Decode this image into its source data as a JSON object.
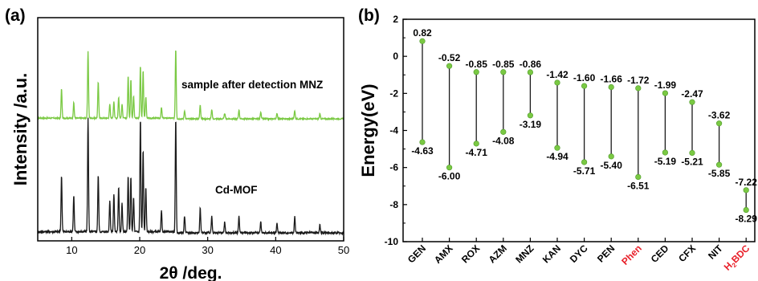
{
  "chart_data": [
    {
      "type": "line",
      "panel_label": "(a)",
      "xlabel": "2θ /deg.",
      "ylabel": "Intensity /a.u.",
      "xlim": [
        5,
        50
      ],
      "xticks": [
        10,
        20,
        30,
        40,
        50
      ],
      "y_tick_labels": "none",
      "grid": false,
      "series": [
        {
          "name": "sample after detection MNZ",
          "color": "#7ac943",
          "peaks": [
            {
              "x": 8.5,
              "y": 0.42
            },
            {
              "x": 10.3,
              "y": 0.22
            },
            {
              "x": 12.4,
              "y": 0.95
            },
            {
              "x": 13.9,
              "y": 0.52
            },
            {
              "x": 15.6,
              "y": 0.2
            },
            {
              "x": 16.2,
              "y": 0.24
            },
            {
              "x": 16.9,
              "y": 0.3
            },
            {
              "x": 17.4,
              "y": 0.2
            },
            {
              "x": 18.3,
              "y": 0.6
            },
            {
              "x": 18.7,
              "y": 0.55
            },
            {
              "x": 19.1,
              "y": 0.32
            },
            {
              "x": 20.1,
              "y": 0.75
            },
            {
              "x": 20.5,
              "y": 0.68
            },
            {
              "x": 20.9,
              "y": 0.3
            },
            {
              "x": 23.2,
              "y": 0.15
            },
            {
              "x": 25.3,
              "y": 1.0
            },
            {
              "x": 26.6,
              "y": 0.12
            },
            {
              "x": 28.9,
              "y": 0.2
            },
            {
              "x": 30.6,
              "y": 0.13
            },
            {
              "x": 32.5,
              "y": 0.08
            },
            {
              "x": 34.6,
              "y": 0.13
            },
            {
              "x": 37.8,
              "y": 0.1
            },
            {
              "x": 40.2,
              "y": 0.08
            },
            {
              "x": 42.8,
              "y": 0.12
            },
            {
              "x": 46.5,
              "y": 0.07
            }
          ]
        },
        {
          "name": "Cd-MOF",
          "color": "#1a1a1a",
          "peaks": [
            {
              "x": 8.5,
              "y": 0.5
            },
            {
              "x": 10.3,
              "y": 0.32
            },
            {
              "x": 12.4,
              "y": 1.0
            },
            {
              "x": 13.9,
              "y": 0.5
            },
            {
              "x": 15.6,
              "y": 0.28
            },
            {
              "x": 16.2,
              "y": 0.33
            },
            {
              "x": 16.9,
              "y": 0.4
            },
            {
              "x": 17.4,
              "y": 0.25
            },
            {
              "x": 18.3,
              "y": 0.5
            },
            {
              "x": 18.7,
              "y": 0.48
            },
            {
              "x": 19.1,
              "y": 0.3
            },
            {
              "x": 20.1,
              "y": 1.0
            },
            {
              "x": 20.5,
              "y": 0.72
            },
            {
              "x": 20.9,
              "y": 0.4
            },
            {
              "x": 23.2,
              "y": 0.18
            },
            {
              "x": 25.3,
              "y": 1.0
            },
            {
              "x": 26.6,
              "y": 0.15
            },
            {
              "x": 28.9,
              "y": 0.22
            },
            {
              "x": 30.6,
              "y": 0.15
            },
            {
              "x": 32.5,
              "y": 0.1
            },
            {
              "x": 34.6,
              "y": 0.15
            },
            {
              "x": 37.8,
              "y": 0.1
            },
            {
              "x": 40.2,
              "y": 0.08
            },
            {
              "x": 42.8,
              "y": 0.14
            },
            {
              "x": 46.5,
              "y": 0.07
            }
          ]
        }
      ]
    },
    {
      "type": "range",
      "panel_label": "(b)",
      "ylabel": "Energy(eV)",
      "ylim": [
        -10,
        2
      ],
      "yticks": [
        -10,
        -8,
        -6,
        -4,
        -2,
        0,
        2
      ],
      "grid": false,
      "marker_color": "#7ac943",
      "highlight_color": "#e8202a",
      "categories": [
        {
          "label": "GEN",
          "high": 0.82,
          "low": -4.63,
          "high_label": "0.82",
          "low_label": "-4.63",
          "highlight": false
        },
        {
          "label": "AMX",
          "high": -0.52,
          "low": -6.0,
          "high_label": "-0.52",
          "low_label": "-6.00",
          "highlight": false
        },
        {
          "label": "ROX",
          "high": -0.85,
          "low": -4.71,
          "high_label": "-0.85",
          "low_label": "-4.71",
          "highlight": false
        },
        {
          "label": "AZM",
          "high": -0.85,
          "low": -4.08,
          "high_label": "-0.85",
          "low_label": "-4.08",
          "highlight": false
        },
        {
          "label": "MNZ",
          "high": -0.86,
          "low": -3.19,
          "high_label": "-0.86",
          "low_label": "-3.19",
          "highlight": false
        },
        {
          "label": "KAN",
          "high": -1.42,
          "low": -4.94,
          "high_label": "-1.42",
          "low_label": "-4.94",
          "highlight": false
        },
        {
          "label": "DYC",
          "high": -1.6,
          "low": -5.71,
          "high_label": "-1.60",
          "low_label": "-5.71",
          "highlight": false
        },
        {
          "label": "PEN",
          "high": -1.66,
          "low": -5.4,
          "high_label": "-1.66",
          "low_label": "-5.40",
          "highlight": false
        },
        {
          "label": "Phen",
          "high": -1.72,
          "low": -6.51,
          "high_label": "-1.72",
          "low_label": "-6.51",
          "highlight": true
        },
        {
          "label": "CED",
          "high": -1.99,
          "low": -5.19,
          "high_label": "-1.99",
          "low_label": "-5.19",
          "highlight": false
        },
        {
          "label": "CFX",
          "high": -2.47,
          "low": -5.21,
          "high_label": "-2.47",
          "low_label": "-5.21",
          "highlight": false
        },
        {
          "label": "NIT",
          "high": -3.62,
          "low": -5.85,
          "high_label": "-3.62",
          "low_label": "-5.85",
          "highlight": false
        },
        {
          "label": "H",
          "sub": "2",
          "label_tail": "BDC",
          "high": -7.22,
          "low": -8.29,
          "high_label": "-7.22",
          "low_label": "-8.29",
          "highlight": true
        }
      ]
    }
  ]
}
